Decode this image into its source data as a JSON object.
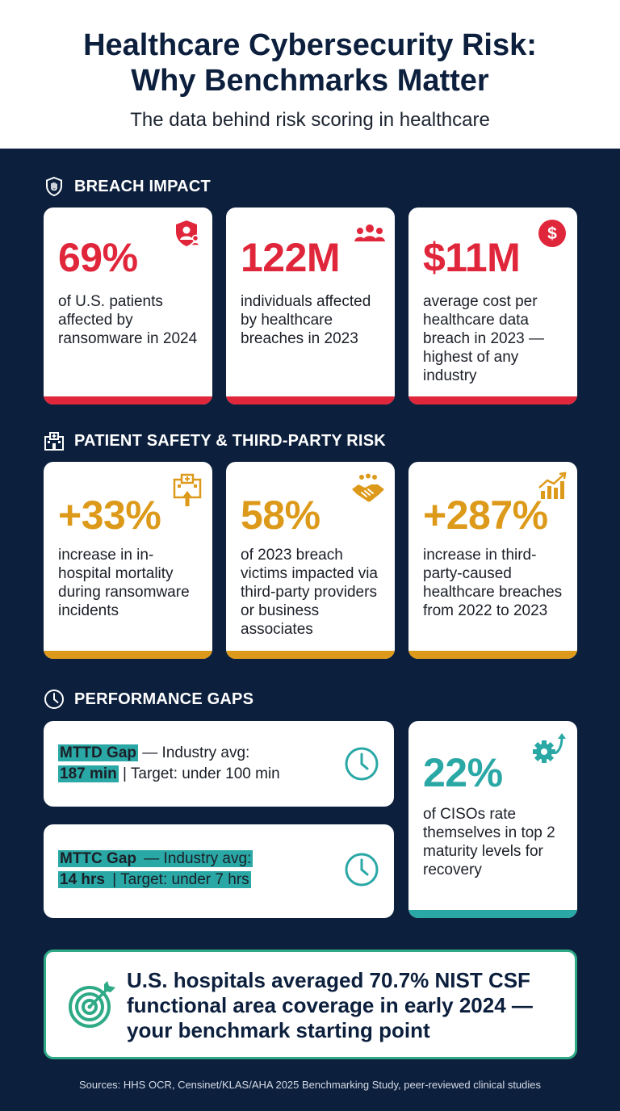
{
  "header": {
    "title_line1": "Healthcare Cybersecurity Risk:",
    "title_line2": "Why Benchmarks Matter",
    "subtitle": "The data behind risk scoring in healthcare"
  },
  "sections": {
    "breach_impact": {
      "title": "BREACH IMPACT",
      "accent": "#e0263a",
      "cards": [
        {
          "stat": "69%",
          "desc": "of U.S. patients affected by ransomware in 2024",
          "icon": "shield-user-icon"
        },
        {
          "stat": "122M",
          "desc": "individuals affected by healthcare breaches in 2023",
          "icon": "people-group-icon"
        },
        {
          "stat": "$11M",
          "desc": "average cost per healthcare data breach in 2023 — highest of any industry",
          "icon": "dollar-icon"
        }
      ]
    },
    "patient_safety": {
      "title": "PATIENT SAFETY & THIRD-PARTY RISK",
      "accent": "#dd9a1a",
      "cards": [
        {
          "stat": "+33%",
          "desc": "increase in in-hospital mortality during ransomware incidents",
          "icon": "hospital-arrow-up-icon"
        },
        {
          "stat": "58%",
          "desc": "of 2023 breach victims impacted via third-party providers or business associates",
          "icon": "handshake-icon"
        },
        {
          "stat": "+287%",
          "desc": "increase in third-party-caused healthcare breaches from 2022 to 2023",
          "icon": "growth-chart-icon"
        }
      ]
    },
    "performance_gaps": {
      "title": "PERFORMANCE GAPS",
      "accent": "#2aa8a6",
      "mttd": {
        "label": "MTTD Gap",
        "mid": " — Industry avg:",
        "value": "187 min",
        "target": " | Target: under 100 min"
      },
      "mttc": {
        "label": "MTTC Gap",
        "mid": " — Industry avg:",
        "value": "14 hrs",
        "target": " | Target: under 7 hrs"
      },
      "ciso": {
        "stat": "22%",
        "desc": "of CISOs rate themselves in top 2 maturity levels for recovery",
        "icon": "gear-arrow-icon"
      }
    }
  },
  "footer": {
    "statement": "U.S. hospitals averaged 70.7% NIST CSF functional area coverage in early 2024 — your benchmark starting point",
    "icon": "target-icon",
    "sources": "Sources: HHS OCR, Censinet/KLAS/AHA 2025 Benchmarking Study, peer-reviewed clinical studies"
  }
}
